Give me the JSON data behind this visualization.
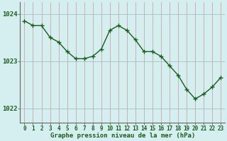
{
  "x": [
    0,
    1,
    2,
    3,
    4,
    5,
    6,
    7,
    8,
    9,
    10,
    11,
    12,
    13,
    14,
    15,
    16,
    17,
    18,
    19,
    20,
    21,
    22,
    23
  ],
  "y": [
    1023.85,
    1023.75,
    1023.75,
    1023.5,
    1023.4,
    1023.2,
    1023.05,
    1023.05,
    1023.1,
    1023.25,
    1023.65,
    1023.75,
    1023.65,
    1023.45,
    1023.2,
    1023.2,
    1023.1,
    1022.9,
    1022.7,
    1022.4,
    1022.2,
    1022.3,
    1022.45,
    1022.65
  ],
  "line_color": "#1a5c1a",
  "marker_color": "#1a5c1a",
  "bg_color": "#d5eef0",
  "grid_color_v": "#cc9999",
  "grid_color_h": "#aabbcc",
  "title": "Graphe pression niveau de la mer (hPa)",
  "ytick_labels": [
    "1022",
    "1023",
    "1024"
  ],
  "yticks": [
    1022,
    1023,
    1024
  ],
  "ylim": [
    1021.7,
    1024.25
  ],
  "xlim": [
    -0.5,
    23.5
  ]
}
